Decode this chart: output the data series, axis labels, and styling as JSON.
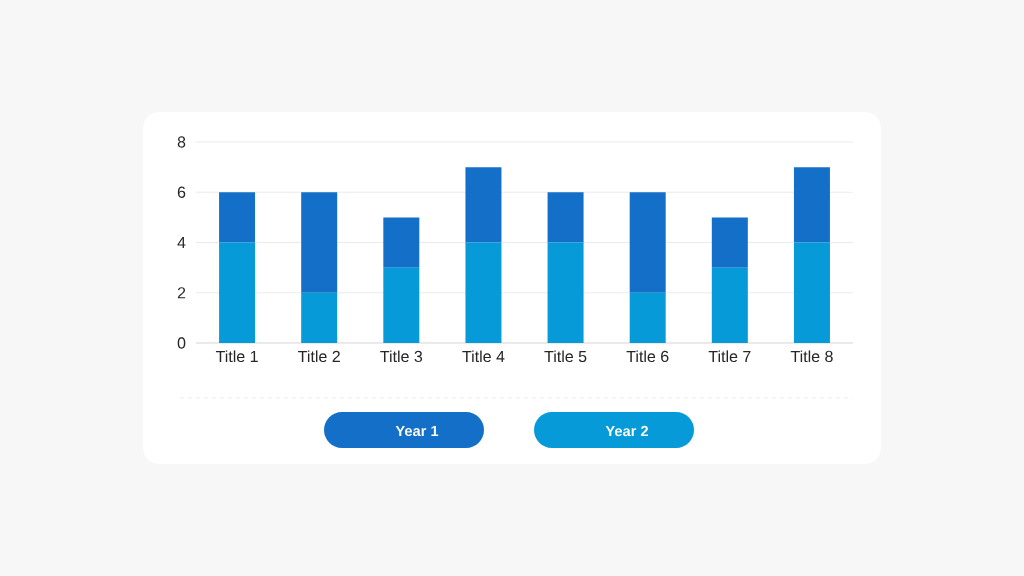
{
  "chart_data": {
    "type": "bar",
    "stacked": true,
    "categories": [
      "Title 1",
      "Title 2",
      "Title 3",
      "Title 4",
      "Title 5",
      "Title 6",
      "Title 7",
      "Title 8"
    ],
    "series": [
      {
        "name": "Year 2",
        "color": "#079ad8",
        "values": [
          4,
          2,
          3,
          4,
          4,
          2,
          3,
          4
        ]
      },
      {
        "name": "Year 1",
        "color": "#136fc8",
        "values": [
          2,
          4,
          2,
          3,
          2,
          4,
          2,
          3
        ]
      }
    ],
    "ylim": [
      0,
      8
    ],
    "yticks": [
      0,
      2,
      4,
      6,
      8
    ],
    "grid": "y",
    "legend": "bottom"
  }
}
